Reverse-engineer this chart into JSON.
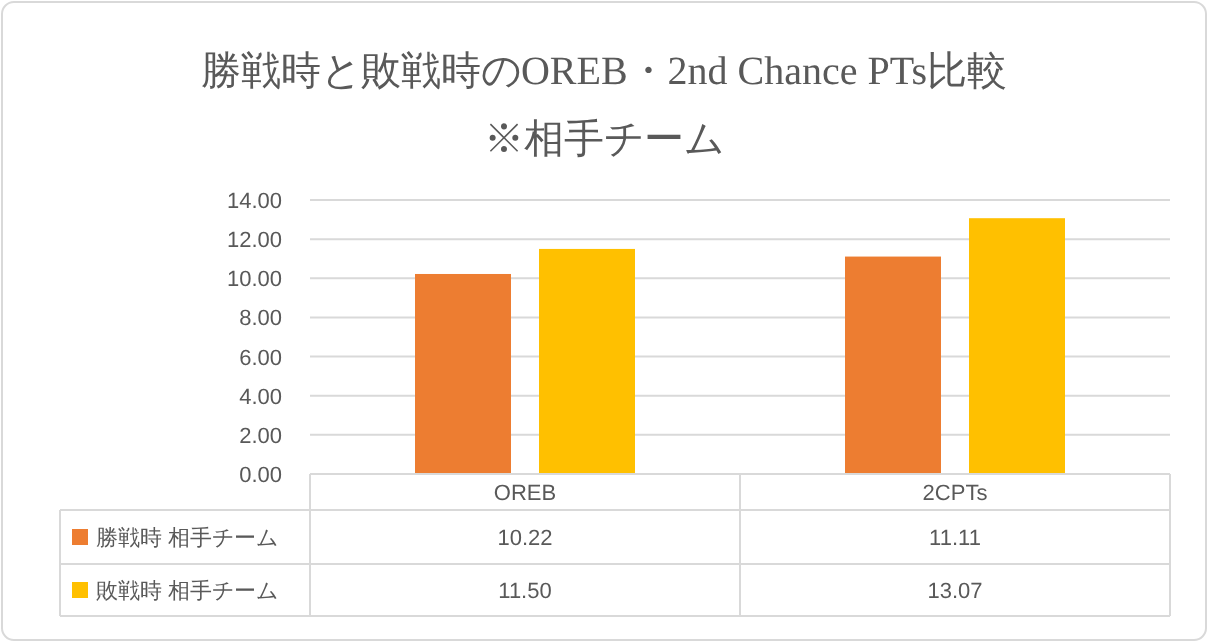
{
  "chart_data": {
    "type": "bar",
    "title": "勝戦時と敗戦時のOREB・2nd Chance PTs比較",
    "subtitle": "※相手チーム",
    "categories": [
      "OREB",
      "2CPTs"
    ],
    "series": [
      {
        "name": "勝戦時 相手チーム",
        "color": "#ed7d31",
        "values": [
          10.22,
          11.11
        ],
        "value_labels": [
          "10.22",
          "11.11"
        ]
      },
      {
        "name": "敗戦時 相手チーム",
        "color": "#ffc000",
        "values": [
          11.5,
          13.07
        ],
        "value_labels": [
          "11.50",
          "13.07"
        ]
      }
    ],
    "ylim": [
      0,
      14
    ],
    "yticks": [
      {
        "value": 0,
        "label": "0.00"
      },
      {
        "value": 2,
        "label": "2.00"
      },
      {
        "value": 4,
        "label": "4.00"
      },
      {
        "value": 6,
        "label": "6.00"
      },
      {
        "value": 8,
        "label": "8.00"
      },
      {
        "value": 10,
        "label": "10.00"
      },
      {
        "value": 12,
        "label": "12.00"
      },
      {
        "value": 14,
        "label": "14.00"
      }
    ],
    "grid": "y",
    "legend": "bottom"
  }
}
